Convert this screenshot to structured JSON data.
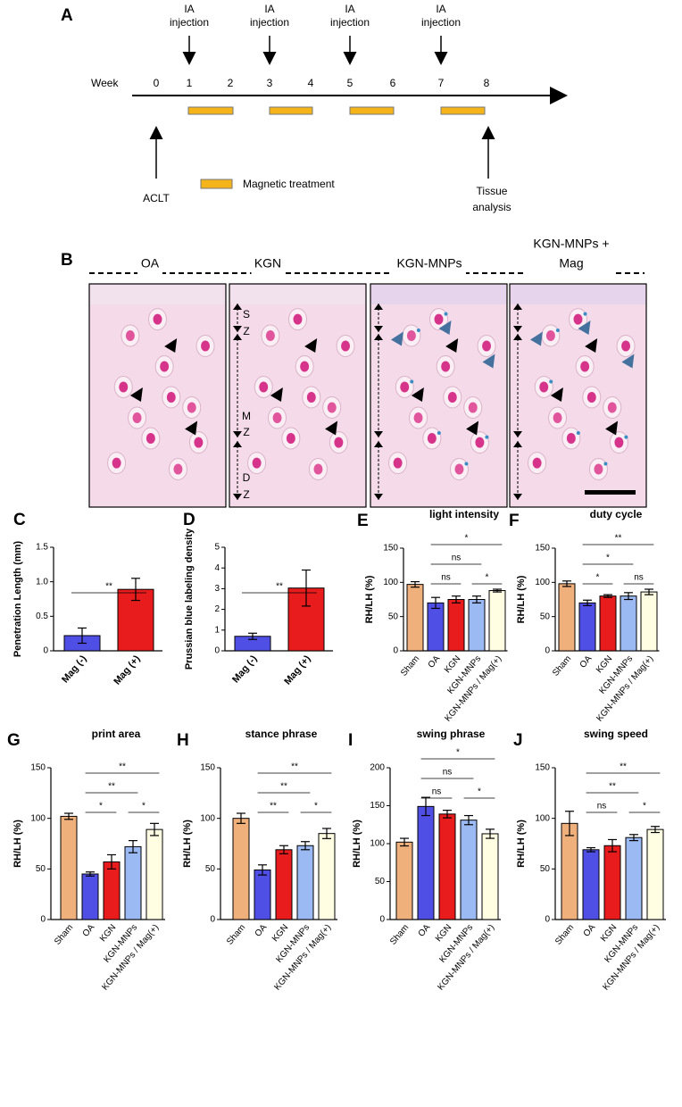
{
  "panel_a": {
    "panel": "A",
    "week_label": "Week",
    "weeks": [
      0,
      1,
      2,
      3,
      4,
      5,
      6,
      7,
      8
    ],
    "injections": [
      {
        "line1": "IA",
        "line2": "injection"
      },
      {
        "line1": "IA",
        "line2": "injection"
      },
      {
        "line1": "IA",
        "line2": "injection"
      },
      {
        "line1": "IA",
        "line2": "injection"
      }
    ],
    "start_label": "ACLT",
    "legend": "Magnetic treatment",
    "end_label": {
      "line1": "Tissue",
      "line2": "analysis"
    }
  },
  "panel_b": {
    "panel": "B",
    "groups": [
      {
        "line1": "OA"
      },
      {
        "line1": "KGN"
      },
      {
        "line1": "KGN-MNPs"
      },
      {
        "line1": "KGN-MNPs +",
        "line2": "Mag"
      }
    ],
    "zones": [
      [
        "S",
        "Z"
      ],
      [
        "M",
        "Z"
      ],
      [
        "D",
        "Z"
      ]
    ]
  },
  "chart_data": [
    {
      "type": "bar",
      "panel": "C",
      "ylabel": "Penetration Length (mm)",
      "categories": [
        "Mag (-)",
        "Mag (+)"
      ],
      "values": [
        0.22,
        0.89
      ],
      "errors": [
        0.11,
        0.16
      ],
      "colors": [
        "#4f4fe6",
        "#e81c1c"
      ],
      "ylim": [
        0,
        1.5
      ],
      "yticks": [
        0,
        0.5,
        {
          "value": 1,
          "label": "1.0"
        },
        1.5
      ],
      "significance": [
        {
          "between": [
            0,
            1
          ],
          "label": "**"
        }
      ]
    },
    {
      "type": "bar",
      "panel": "D",
      "ylabel": "Prussian blue labeling density",
      "categories": [
        "Mag (-)",
        "Mag (+)"
      ],
      "values": [
        0.7,
        3.03
      ],
      "errors": [
        0.15,
        0.87
      ],
      "colors": [
        "#4f4fe6",
        "#e81c1c"
      ],
      "ylim": [
        0,
        5
      ],
      "yticks": [
        0,
        1,
        2,
        3,
        4,
        5
      ],
      "significance": [
        {
          "between": [
            0,
            1
          ],
          "label": "**"
        }
      ]
    },
    {
      "type": "bar",
      "panel": "E",
      "title": "light intensity",
      "ylabel": "RH/LH (%)",
      "categories": [
        "Sham",
        "OA",
        "KGN",
        "KGN-MNPs",
        "KGN-MNPs / Mag(+)"
      ],
      "values": [
        97,
        70,
        75,
        75,
        88
      ],
      "errors": [
        4,
        8,
        5,
        5,
        2
      ],
      "colors": [
        "#f0b07c",
        "#4f4fe6",
        "#e81c1c",
        "#9bb9f2",
        "#fffde2"
      ],
      "ylim": [
        0,
        150
      ],
      "yticks": [
        0,
        50,
        100,
        150
      ],
      "significance": [
        {
          "between": [
            1,
            4
          ],
          "label": "*"
        },
        {
          "between": [
            1,
            3
          ],
          "label": "ns"
        },
        {
          "between": [
            1,
            2
          ],
          "label": "ns"
        },
        {
          "between": [
            3,
            4
          ],
          "label": "*"
        }
      ]
    },
    {
      "type": "bar",
      "panel": "F",
      "title": "duty cycle",
      "ylabel": "RH/LH (%)",
      "categories": [
        "Sham",
        "OA",
        "KGN",
        "KGN-MNPs",
        "KGN-MNPs / Mag(+)"
      ],
      "values": [
        98,
        70,
        80,
        80,
        86
      ],
      "errors": [
        4,
        4,
        2,
        5,
        4
      ],
      "colors": [
        "#f0b07c",
        "#4f4fe6",
        "#e81c1c",
        "#9bb9f2",
        "#fffde2"
      ],
      "ylim": [
        0,
        150
      ],
      "yticks": [
        0,
        50,
        100,
        150
      ],
      "significance": [
        {
          "between": [
            1,
            4
          ],
          "label": "**"
        },
        {
          "between": [
            1,
            3
          ],
          "label": "*"
        },
        {
          "between": [
            1,
            2
          ],
          "label": "*"
        },
        {
          "between": [
            3,
            4
          ],
          "label": "ns"
        }
      ]
    },
    {
      "type": "bar",
      "panel": "G",
      "title": "print area",
      "ylabel": "RH/LH (%)",
      "categories": [
        "Sham",
        "OA",
        "KGN",
        "KGN-MNPs",
        "KGN-MNPs / Mag(+)"
      ],
      "values": [
        102,
        45,
        57,
        72,
        89
      ],
      "errors": [
        3,
        2,
        7,
        6,
        6
      ],
      "colors": [
        "#f0b07c",
        "#4f4fe6",
        "#e81c1c",
        "#9bb9f2",
        "#fffde2"
      ],
      "ylim": [
        0,
        150
      ],
      "yticks": [
        0,
        50,
        100,
        150
      ],
      "significance": [
        {
          "between": [
            1,
            4
          ],
          "label": "**"
        },
        {
          "between": [
            1,
            3
          ],
          "label": "**"
        },
        {
          "between": [
            1,
            2
          ],
          "label": "*"
        },
        {
          "between": [
            3,
            4
          ],
          "label": "*"
        }
      ]
    },
    {
      "type": "bar",
      "panel": "H",
      "title": "stance phrase",
      "ylabel": "RH/LH (%)",
      "categories": [
        "Sham",
        "OA",
        "KGN",
        "KGN-MNPs",
        "KGN-MNPs / Mag(+)"
      ],
      "values": [
        100,
        49,
        69,
        73,
        85
      ],
      "errors": [
        5,
        5,
        4,
        4,
        5
      ],
      "colors": [
        "#f0b07c",
        "#4f4fe6",
        "#e81c1c",
        "#9bb9f2",
        "#fffde2"
      ],
      "ylim": [
        0,
        150
      ],
      "yticks": [
        0,
        50,
        100,
        150
      ],
      "significance": [
        {
          "between": [
            1,
            4
          ],
          "label": "**"
        },
        {
          "between": [
            1,
            3
          ],
          "label": "**"
        },
        {
          "between": [
            1,
            2
          ],
          "label": "**"
        },
        {
          "between": [
            3,
            4
          ],
          "label": "*"
        }
      ]
    },
    {
      "type": "bar",
      "panel": "I",
      "title": "swing phrase",
      "ylabel": "RH/LH (%)",
      "categories": [
        "Sham",
        "OA",
        "KGN",
        "KGN-MNPs",
        "KGN-MNPs / Mag(+)"
      ],
      "values": [
        102,
        149,
        139,
        131,
        113
      ],
      "errors": [
        5,
        12,
        5,
        6,
        6
      ],
      "colors": [
        "#f0b07c",
        "#4f4fe6",
        "#e81c1c",
        "#9bb9f2",
        "#fffde2"
      ],
      "ylim": [
        0,
        200
      ],
      "yticks": [
        0,
        50,
        100,
        150,
        200
      ],
      "significance": [
        {
          "between": [
            1,
            4
          ],
          "label": "*"
        },
        {
          "between": [
            1,
            3
          ],
          "label": "ns"
        },
        {
          "between": [
            1,
            2
          ],
          "label": "ns"
        },
        {
          "between": [
            3,
            4
          ],
          "label": "*"
        }
      ]
    },
    {
      "type": "bar",
      "panel": "J",
      "title": "swing speed",
      "ylabel": "RH/LH (%)",
      "categories": [
        "Sham",
        "OA",
        "KGN",
        "KGN-MNPs",
        "KGN-MNPs / Mag(+)"
      ],
      "values": [
        95,
        69,
        73,
        81,
        89
      ],
      "errors": [
        12,
        2,
        6,
        3,
        3
      ],
      "colors": [
        "#f0b07c",
        "#4f4fe6",
        "#e81c1c",
        "#9bb9f2",
        "#fffde2"
      ],
      "ylim": [
        0,
        150
      ],
      "yticks": [
        0,
        50,
        100,
        150
      ],
      "significance": [
        {
          "between": [
            1,
            4
          ],
          "label": "**"
        },
        {
          "between": [
            1,
            3
          ],
          "label": "**"
        },
        {
          "between": [
            1,
            2
          ],
          "label": "ns"
        },
        {
          "between": [
            3,
            4
          ],
          "label": "*"
        }
      ]
    }
  ]
}
